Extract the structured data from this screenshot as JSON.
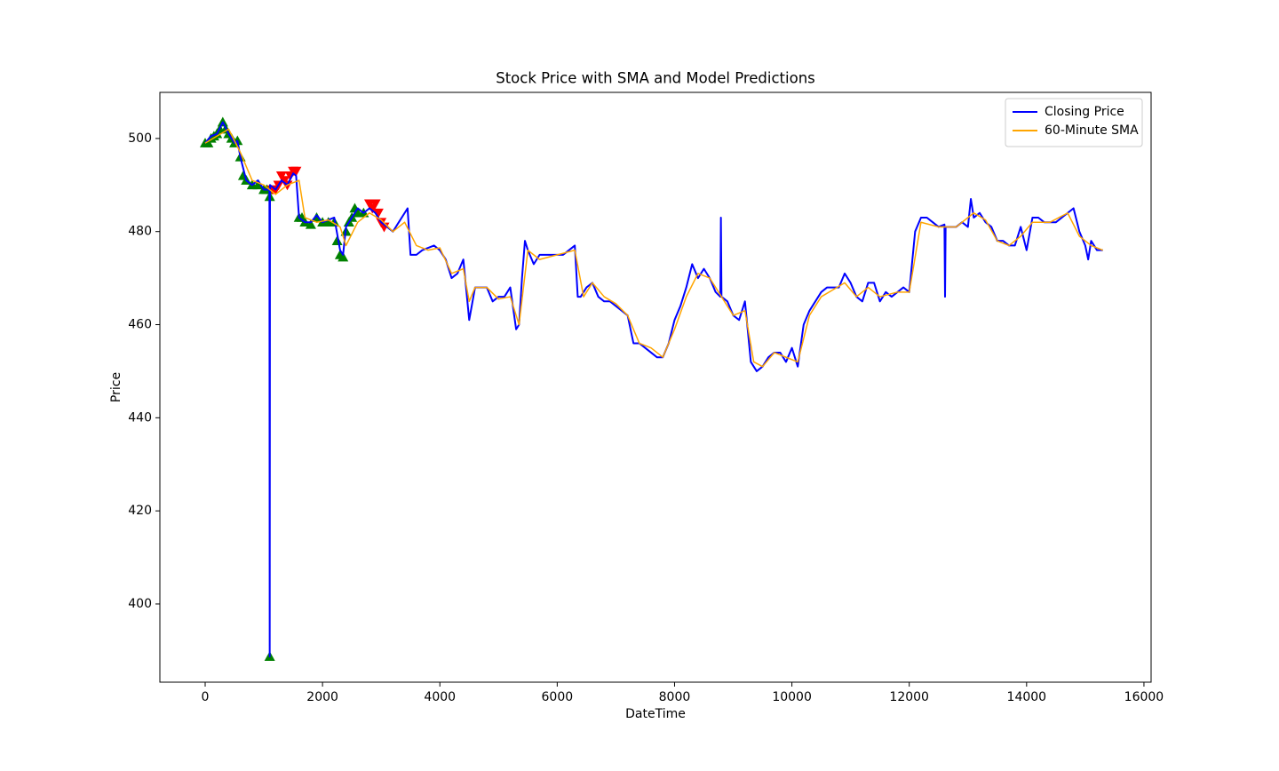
{
  "chart_data": {
    "type": "line",
    "title": "Stock Price with SMA and Model Predictions",
    "x_label": "DateTime",
    "y_label": "Price",
    "xlim": [
      -772,
      16122
    ],
    "ylim": [
      383.2,
      509.9
    ],
    "xticks": [
      0,
      2000,
      4000,
      6000,
      8000,
      10000,
      12000,
      14000,
      16000
    ],
    "yticks": [
      400,
      420,
      440,
      460,
      480,
      500
    ],
    "legend": "upper right",
    "series": [
      {
        "name": "Closing Price",
        "color": "blue",
        "x": [
          0,
          100,
          200,
          300,
          400,
          500,
          550,
          600,
          700,
          800,
          900,
          1000,
          1095,
          1100,
          1105,
          1200,
          1300,
          1400,
          1500,
          1550,
          1600,
          1700,
          1800,
          1900,
          2000,
          2100,
          2200,
          2300,
          2350,
          2400,
          2500,
          2600,
          2700,
          2800,
          2900,
          3000,
          3100,
          3200,
          3300,
          3400,
          3450,
          3500,
          3600,
          3700,
          3800,
          3900,
          4000,
          4100,
          4200,
          4300,
          4400,
          4500,
          4600,
          4700,
          4800,
          4900,
          5000,
          5100,
          5200,
          5300,
          5350,
          5400,
          5450,
          5500,
          5600,
          5700,
          5800,
          5900,
          6000,
          6100,
          6200,
          6300,
          6350,
          6400,
          6500,
          6600,
          6700,
          6800,
          6900,
          7000,
          7100,
          7200,
          7300,
          7400,
          7500,
          7600,
          7700,
          7800,
          7900,
          8000,
          8100,
          8200,
          8300,
          8400,
          8500,
          8600,
          8700,
          8780,
          8790,
          8800,
          8900,
          9000,
          9100,
          9200,
          9300,
          9400,
          9500,
          9600,
          9700,
          9800,
          9900,
          10000,
          10100,
          10200,
          10300,
          10400,
          10500,
          10600,
          10700,
          10800,
          10900,
          11000,
          11100,
          11200,
          11300,
          11400,
          11500,
          11600,
          11700,
          11800,
          11900,
          12000,
          12100,
          12200,
          12300,
          12400,
          12500,
          12600,
          12610,
          12620,
          12700,
          12800,
          12900,
          13000,
          13050,
          13100,
          13200,
          13300,
          13400,
          13500,
          13600,
          13700,
          13800,
          13900,
          14000,
          14100,
          14200,
          14300,
          14400,
          14500,
          14600,
          14700,
          14800,
          14900,
          15000,
          15050,
          15100,
          15200,
          15300
        ],
        "values": [
          499,
          500.5,
          501,
          503.5,
          501,
          499,
          499.5,
          496,
          491,
          490,
          491,
          489,
          489,
          388.7,
          490,
          489,
          491,
          490,
          492.5,
          492,
          483,
          482,
          482,
          483.5,
          482,
          482.5,
          483,
          476,
          475,
          481,
          483,
          485,
          484,
          485,
          484,
          482,
          481,
          480,
          482,
          484,
          485,
          475,
          475,
          476,
          476.5,
          477,
          476,
          474,
          470,
          471,
          474,
          461,
          468,
          468,
          468,
          465,
          466,
          466,
          468,
          459,
          460,
          470,
          478,
          476,
          473,
          475,
          475,
          475,
          475,
          475,
          476,
          477,
          466,
          466,
          468,
          469,
          466,
          465,
          465,
          464,
          463,
          462,
          456,
          456,
          455,
          454,
          453,
          453,
          456,
          461,
          464,
          468,
          473,
          470,
          472,
          470,
          467,
          466,
          483,
          466,
          465,
          462,
          461,
          465,
          452,
          450,
          451,
          453,
          454,
          454,
          452,
          455,
          451,
          460,
          463,
          465,
          467,
          468,
          468,
          468,
          471,
          469,
          466,
          465,
          469,
          469,
          465,
          467,
          466,
          467,
          468,
          467,
          480,
          483,
          483,
          482,
          481,
          481.5,
          466,
          481,
          481,
          481,
          482,
          481,
          487,
          483,
          484,
          482,
          481,
          478,
          478,
          477,
          477,
          481,
          476,
          483,
          483,
          482,
          482,
          482,
          483,
          484,
          485,
          480,
          477,
          474,
          478,
          476,
          476
        ]
      },
      {
        "name": "60-Minute SMA",
        "color": "orange",
        "x": [
          0,
          200,
          400,
          600,
          800,
          1000,
          1200,
          1400,
          1600,
          1700,
          1900,
          2100,
          2300,
          2400,
          2600,
          2800,
          3000,
          3200,
          3400,
          3600,
          3800,
          4000,
          4200,
          4400,
          4500,
          4600,
          4800,
          5000,
          5200,
          5350,
          5500,
          5700,
          6000,
          6300,
          6450,
          6600,
          6800,
          7000,
          7200,
          7400,
          7600,
          7800,
          8000,
          8200,
          8400,
          8600,
          8800,
          9000,
          9200,
          9350,
          9500,
          9700,
          9900,
          10100,
          10300,
          10500,
          10700,
          10900,
          11100,
          11300,
          11500,
          11800,
          12000,
          12200,
          12500,
          12800,
          13100,
          13300,
          13500,
          13700,
          13900,
          14100,
          14400,
          14700,
          14900,
          15100,
          15300
        ],
        "values": [
          499,
          500.5,
          502,
          497,
          491,
          490,
          488,
          490,
          491,
          483,
          482,
          482.5,
          481,
          477,
          482,
          484,
          482.5,
          480,
          482,
          477,
          476,
          476.5,
          471,
          472,
          465,
          468,
          468,
          465.5,
          466,
          460,
          476,
          474,
          475,
          476,
          466,
          469,
          466,
          464.5,
          462,
          456,
          455,
          453,
          459,
          466,
          471,
          470,
          466,
          462,
          463,
          452,
          451,
          454,
          453,
          452,
          462,
          466,
          467.5,
          469,
          466,
          468,
          466,
          467,
          467,
          482,
          481,
          481,
          484,
          482.5,
          478,
          477,
          479,
          482,
          482,
          484,
          479,
          477,
          476
        ]
      }
    ],
    "buy_signals": {
      "color": "green",
      "x": [
        0,
        50,
        100,
        150,
        200,
        250,
        300,
        350,
        400,
        450,
        500,
        550,
        600,
        650,
        700,
        800,
        900,
        1000,
        1050,
        1100,
        1100,
        1600,
        1650,
        1700,
        1800,
        1900,
        2000,
        2100,
        2200,
        2250,
        2300,
        2350,
        2400,
        2450,
        2500,
        2550,
        2600,
        2700
      ],
      "values": [
        499,
        499,
        500,
        500.5,
        501,
        502,
        503.5,
        502,
        501,
        500,
        499,
        499.5,
        496,
        492,
        491,
        490,
        490,
        489,
        489,
        388.7,
        487.5,
        483,
        483,
        482,
        481.5,
        483,
        482,
        482,
        482,
        478,
        475,
        474.5,
        480,
        482,
        483,
        485,
        484,
        484
      ]
    },
    "sell_signals": {
      "color": "red",
      "x": [
        1150,
        1200,
        1250,
        1300,
        1350,
        1400,
        1450,
        1500,
        1550,
        2800,
        2850,
        2900,
        2950,
        3000,
        3050
      ],
      "values": [
        489,
        489,
        490,
        492,
        491,
        490,
        492,
        493,
        493,
        486,
        485,
        486,
        484,
        482,
        481
      ]
    }
  }
}
